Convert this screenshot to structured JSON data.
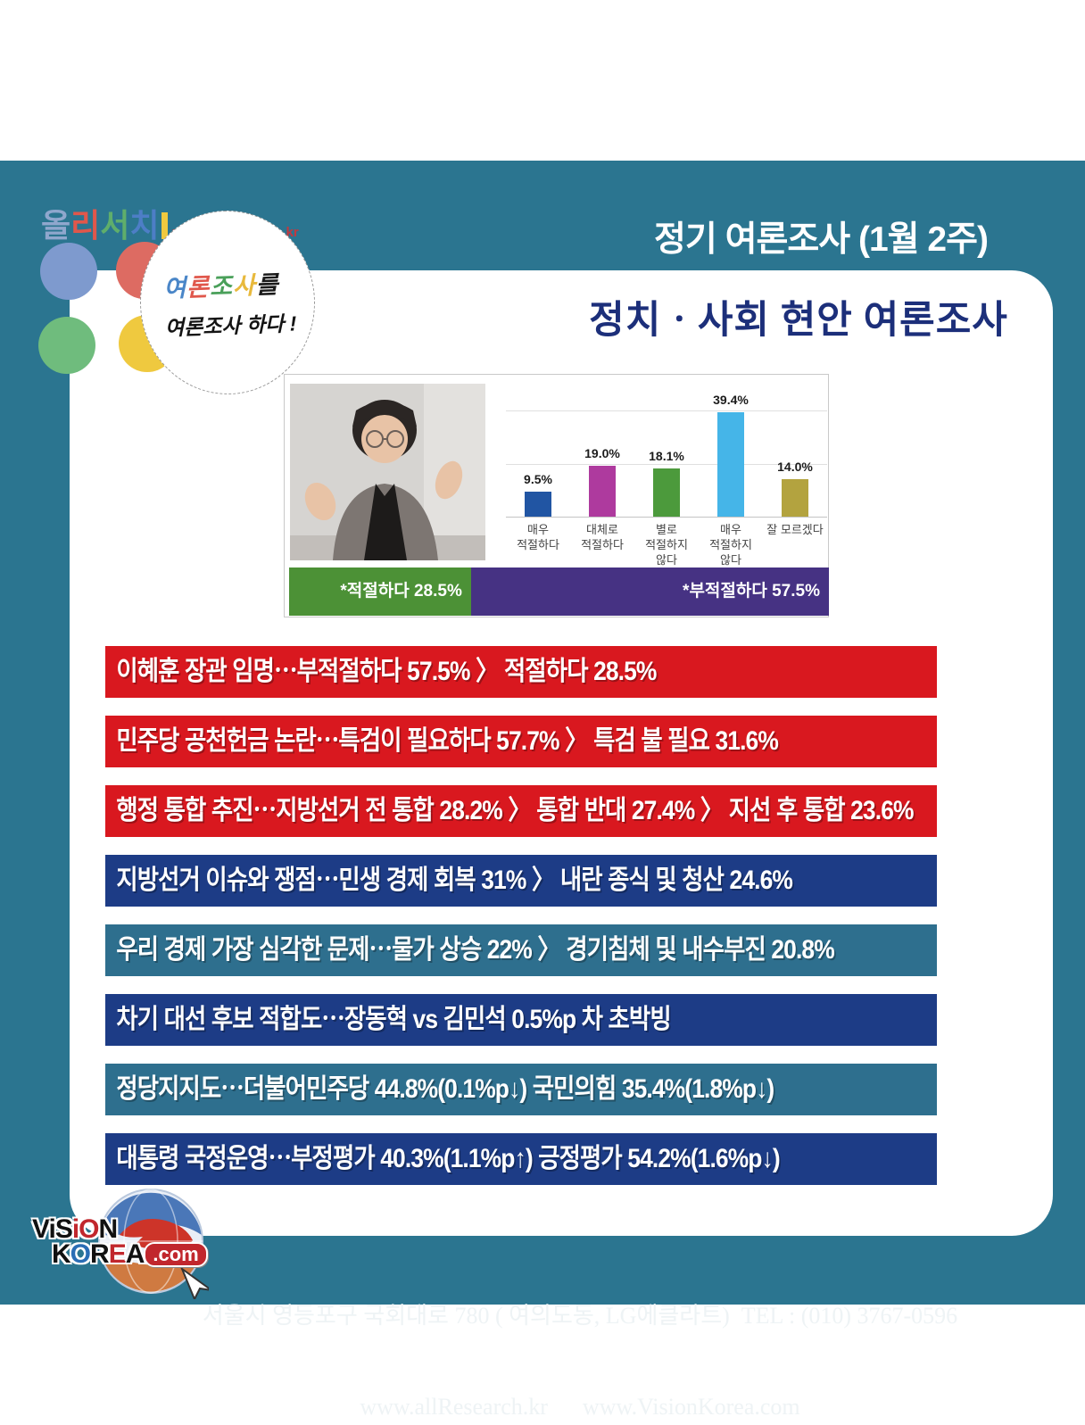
{
  "header": {
    "title": "정기 여론조사 (1월 2주)",
    "subtitle": "정치ㆍ사회 현안 여론조사"
  },
  "brand_logo": {
    "chars": [
      {
        "ch": "올",
        "color": "#8fa7cd"
      },
      {
        "ch": "리",
        "color": "#e0574b"
      },
      {
        "ch": "서",
        "color": "#5fae6b"
      },
      {
        "ch": "치",
        "color": "#4d7ec6"
      }
    ],
    "url": "www.allResearch.kr"
  },
  "bubble": {
    "line1_chars": [
      {
        "ch": "여",
        "color": "#4a86c8"
      },
      {
        "ch": "론",
        "color": "#e0574b"
      },
      {
        "ch": "조",
        "color": "#4aa05a"
      },
      {
        "ch": "사",
        "color": "#e8b93c"
      },
      {
        "ch": "를",
        "color": "#1a1a1a"
      }
    ],
    "line2": "여론조사 하다 !"
  },
  "chart_data": {
    "type": "bar",
    "title": "",
    "categories": [
      "매우\n적절하다",
      "대체로\n적절하다",
      "별로\n적절하지\n않다",
      "매우\n적절하지\n않다",
      "잘 모르겠다"
    ],
    "values": [
      9.5,
      19.0,
      18.1,
      39.4,
      14.0
    ],
    "value_labels": [
      "9.5%",
      "19.0%",
      "18.1%",
      "39.4%",
      "14.0%"
    ],
    "colors": [
      "#2155a3",
      "#ae3a9e",
      "#4c9a3c",
      "#45b5e8",
      "#b3a33f"
    ],
    "ylim": [
      0,
      45
    ],
    "gridlines_pct": [
      20,
      40
    ],
    "legend": "none",
    "summary_bars": [
      {
        "label": "*적절하다 28.5%",
        "value": 28.5,
        "color": "#4c9136"
      },
      {
        "label": "*부적절하다 57.5%",
        "value": 57.5,
        "color": "#463283"
      }
    ]
  },
  "banners": [
    {
      "style": "red",
      "text": "이혜훈 장관 임명⋯부적절하다 57.5% 〉 적절하다 28.5%"
    },
    {
      "style": "red",
      "text": "민주당 공천헌금 논란⋯특검이 필요하다 57.7% 〉 특검 불 필요  31.6%"
    },
    {
      "style": "red",
      "text": "행정 통합 추진⋯지방선거 전 통합 28.2% 〉 통합 반대 27.4% 〉 지선 후 통합 23.6%"
    },
    {
      "style": "navy",
      "text": "지방선거 이슈와 쟁점⋯민생 경제 회복 31% 〉 내란 종식 및 청산 24.6%"
    },
    {
      "style": "teal",
      "text": "우리 경제 가장 심각한 문제⋯물가 상승 22% 〉 경기침체 및 내수부진 20.8%"
    },
    {
      "style": "navy",
      "text": "차기 대선 후보 적합도⋯장동혁 vs 김민석 0.5%p 차 초박빙"
    },
    {
      "style": "teal",
      "text": "정당지지도⋯더불어민주당 44.8%(0.1%p↓) 국민의힘 35.4%(1.8%p↓)"
    },
    {
      "style": "navy",
      "text": "대통령 국정운영⋯부정평가 40.3%(1.1%p↑) 긍정평가 54.2%(1.6%p↓)"
    }
  ],
  "footer": {
    "address": "서울시 영등포구 국회대로 780 ( 여의도동, LG에클라트)  TEL : (010) 3767-0596",
    "links": "www.allResearch.kr      www.VisionKorea.com",
    "logo_line1": [
      {
        "ch": "V",
        "color": "#111111"
      },
      {
        "ch": "i",
        "color": "#111111"
      },
      {
        "ch": "S",
        "color": "#111111"
      },
      {
        "ch": "i",
        "color": "#c1272d"
      },
      {
        "ch": "O",
        "color": "#c1272d"
      },
      {
        "ch": "N",
        "color": "#111111"
      }
    ],
    "logo_line2": [
      {
        "ch": "K",
        "color": "#111111"
      },
      {
        "ch": "O",
        "color": "#2a6db5"
      },
      {
        "ch": "R",
        "color": "#111111"
      },
      {
        "ch": "E",
        "color": "#c1272d"
      },
      {
        "ch": "A",
        "color": "#111111"
      }
    ],
    "logo_dotcom": ".com"
  },
  "colors": {
    "frame_teal": "#2b7590",
    "banner_red": "#d9181f",
    "banner_navy": "#1d3c86",
    "banner_teal": "#2e6f8e",
    "summary_green": "#4c9136",
    "summary_purple": "#463283"
  }
}
